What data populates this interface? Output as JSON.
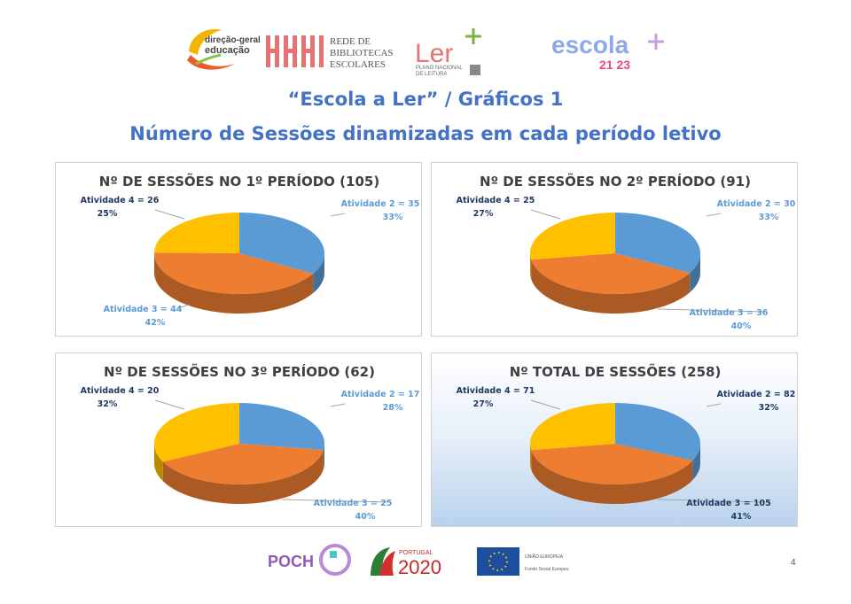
{
  "header": {
    "dge_line1": "direção-geral",
    "dge_line2": "educação",
    "rbe_lines": [
      "REDE DE",
      "BIBLIOTECAS",
      "ESCOLARES"
    ],
    "ler_word": "Ler",
    "ler_sub1": "PLANO NACIONAL",
    "ler_sub2": "DE LEITURA",
    "escola_word": "escola",
    "escola_years": "21 23"
  },
  "title": "“Escola a Ler” / Gráficos 1",
  "subtitle": "Número de Sessões dinamizadas em cada período letivo",
  "colors": {
    "Atividade 2": "#5b9bd5",
    "Atividade 3": "#ed7d31",
    "Atividade 4": "#ffc000",
    "title": "#4472c4"
  },
  "chart_data": [
    {
      "type": "pie",
      "title": "Nº DE SESSÕES NO 1º PERÍODO (105)",
      "categories": [
        "Atividade 2",
        "Atividade 3",
        "Atividade 4"
      ],
      "values": [
        35,
        44,
        26
      ],
      "labels": [
        {
          "line1": "Atividade 2 = 35",
          "line2": "33%"
        },
        {
          "line1": "Atividade 3 = 44",
          "line2": "42%"
        },
        {
          "line1": "Atividade 4 = 26",
          "line2": "25%"
        }
      ]
    },
    {
      "type": "pie",
      "title": "Nº DE SESSÕES NO 2º PERÍODO (91)",
      "categories": [
        "Atividade 2",
        "Atividade 3",
        "Atividade 4"
      ],
      "values": [
        30,
        36,
        25
      ],
      "labels": [
        {
          "line1": "Atividade 2 = 30",
          "line2": "33%"
        },
        {
          "line1": "Atividade 3 = 36",
          "line2": "40%"
        },
        {
          "line1": "Atividade 4 = 25",
          "line2": "27%"
        }
      ]
    },
    {
      "type": "pie",
      "title": "Nº DE SESSÕES NO 3º PERÍODO (62)",
      "categories": [
        "Atividade 2",
        "Atividade 3",
        "Atividade 4"
      ],
      "values": [
        17,
        25,
        20
      ],
      "labels": [
        {
          "line1": "Atividade 2 = 17",
          "line2": "28%"
        },
        {
          "line1": "Atividade 3 = 25",
          "line2": "40%"
        },
        {
          "line1": "Atividade 4 = 20",
          "line2": "32%"
        }
      ]
    },
    {
      "type": "pie",
      "title": "Nº TOTAL DE SESSÕES (258)",
      "categories": [
        "Atividade 2",
        "Atividade 3",
        "Atividade 4"
      ],
      "values": [
        82,
        105,
        71
      ],
      "labels": [
        {
          "line1": "Atividade 2 = 82",
          "line2": "32%"
        },
        {
          "line1": "Atividade 3 = 105",
          "line2": "41%"
        },
        {
          "line1": "Atividade 4 = 71",
          "line2": "27%"
        }
      ]
    }
  ],
  "footer": {
    "poch": "POCH",
    "portugal": "PORTUGAL",
    "year": "2020",
    "eu_line1": "UNIÃO EUROPEIA",
    "eu_line2": "Fundo Social Europeu"
  },
  "page_number": "4"
}
